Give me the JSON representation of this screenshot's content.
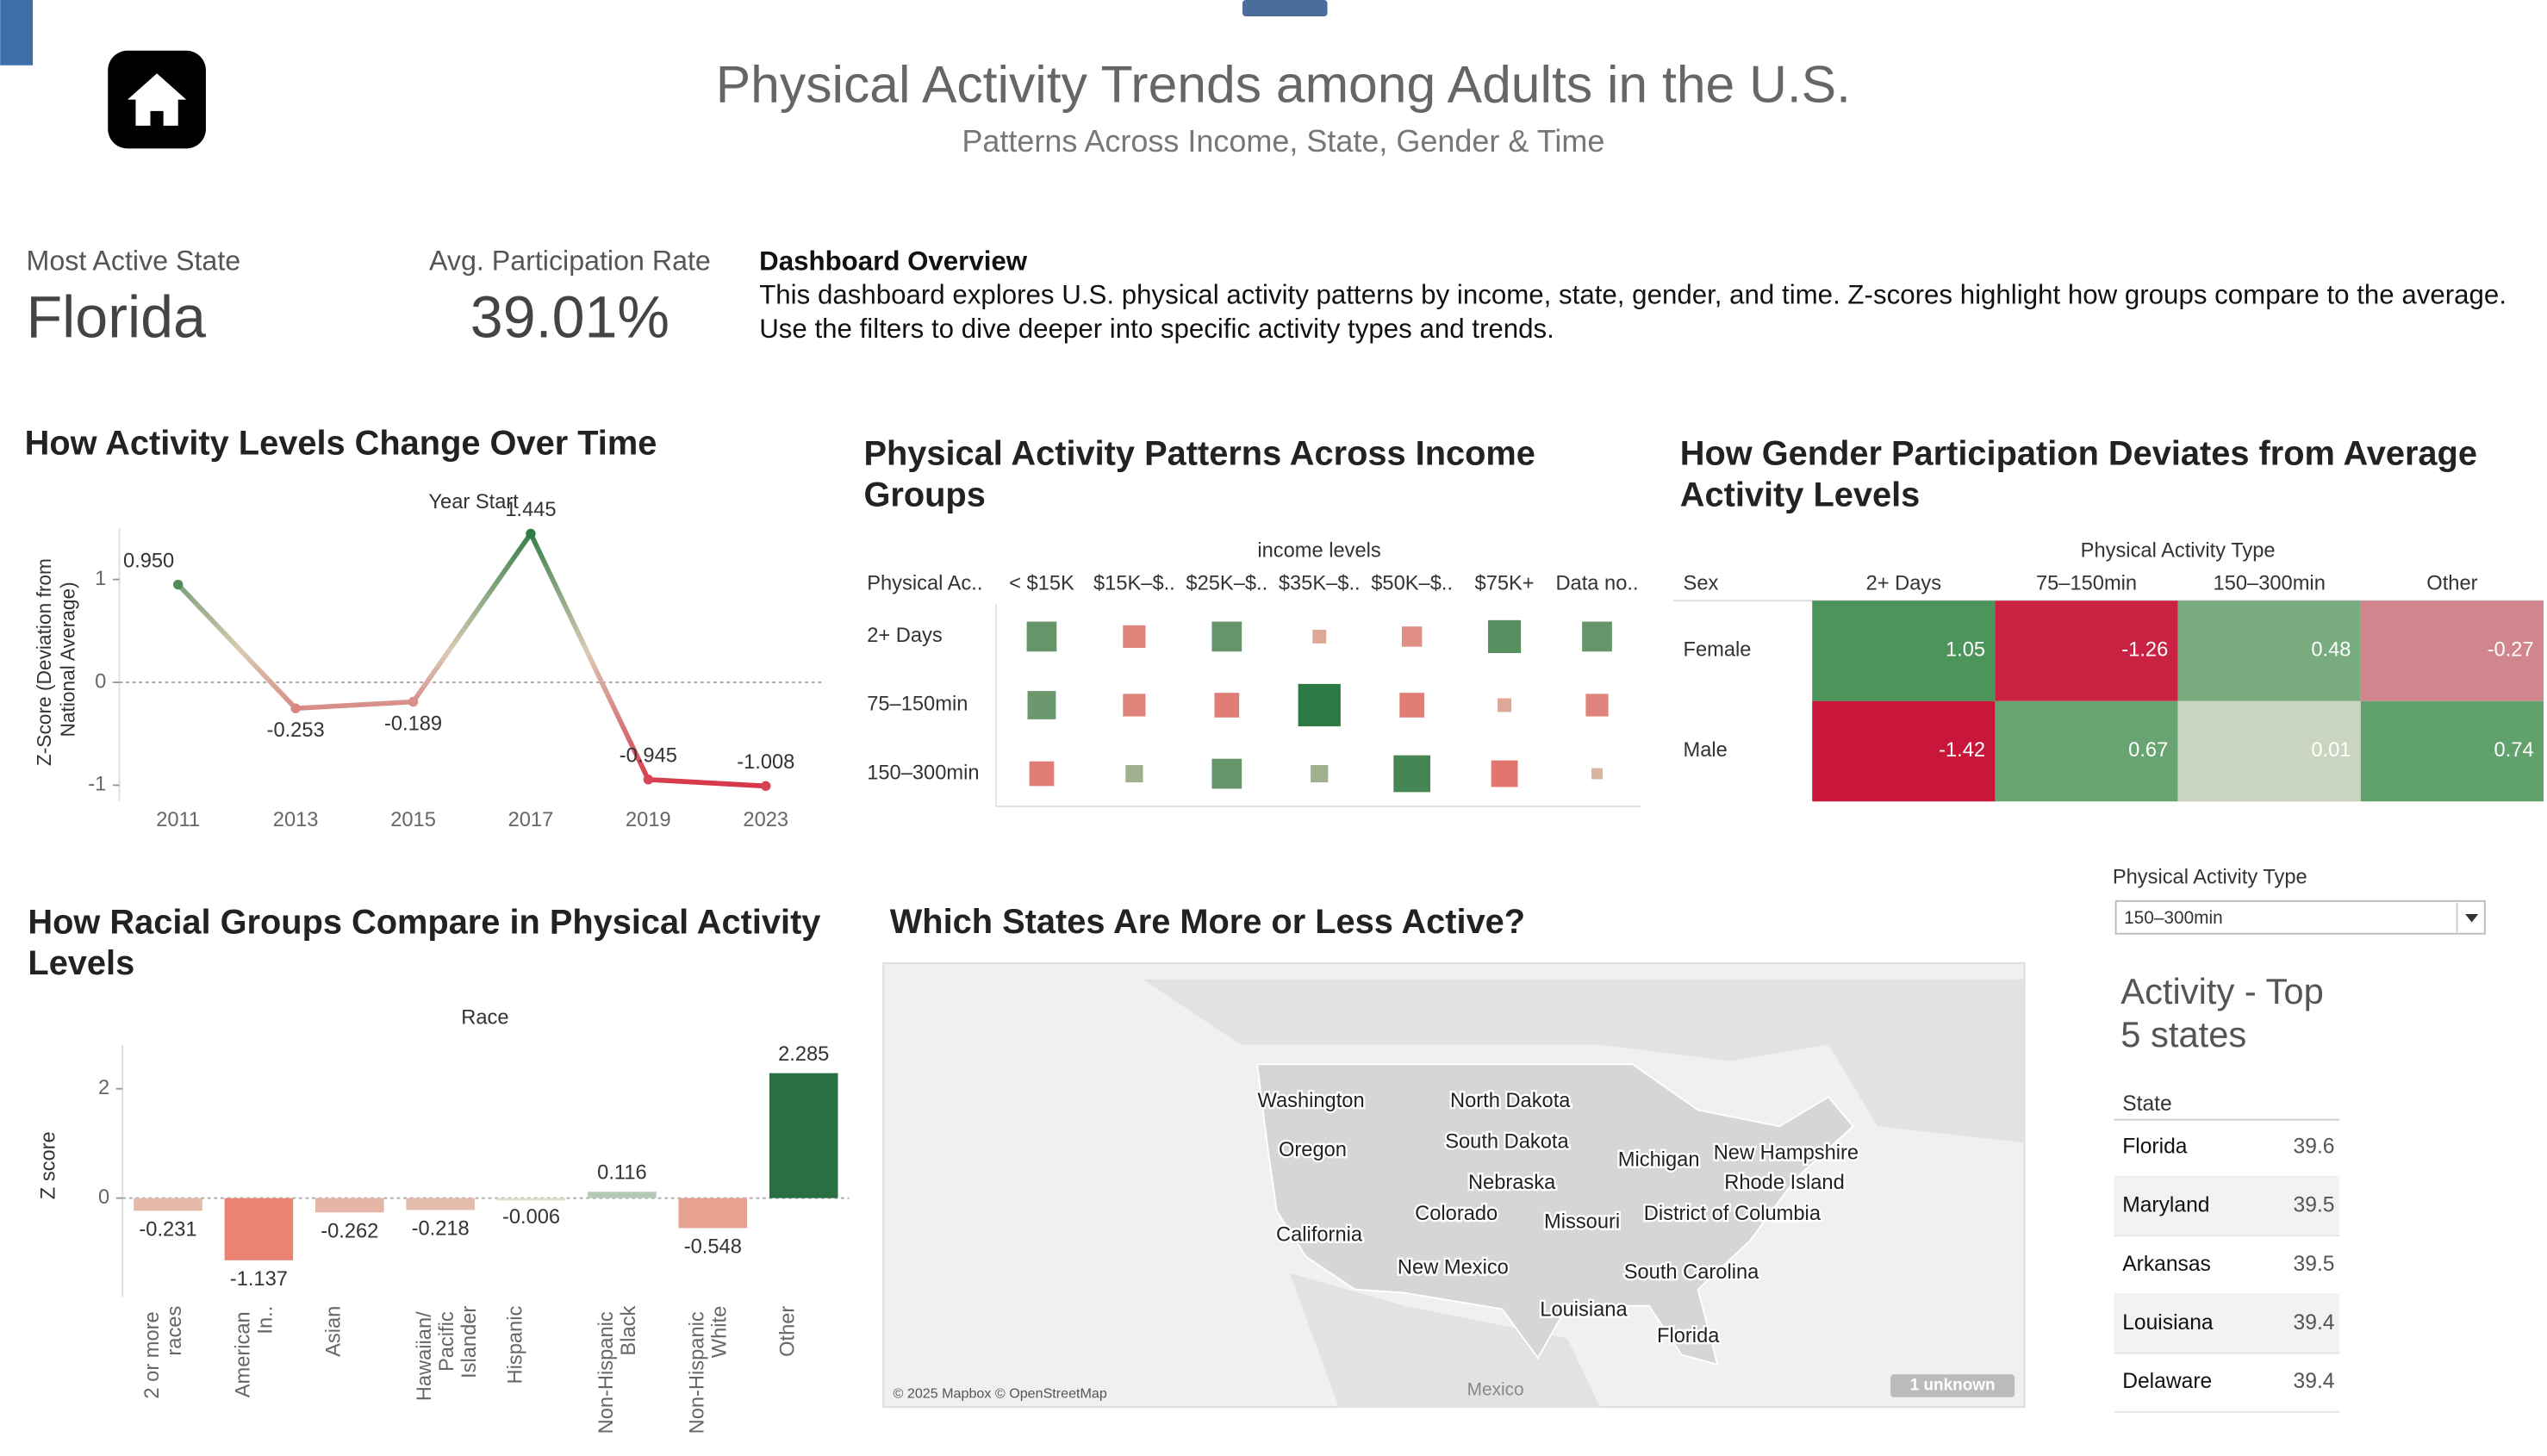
{
  "header": {
    "title": "Physical Activity Trends among Adults in the U.S.",
    "subtitle": "Patterns Across Income, State, Gender & Time"
  },
  "kpis": [
    {
      "label": "Most Active State",
      "value": "Florida"
    },
    {
      "label": "Avg. Participation Rate",
      "value": "39.01%"
    }
  ],
  "overview": {
    "title": "Dashboard Overview",
    "text": "This dashboard explores U.S. physical activity patterns by income, state, gender, and time. Z-scores highlight how groups compare to the average. Use the filters to dive deeper into specific activity types and trends."
  },
  "chart_data": [
    {
      "type": "line",
      "title": "How Activity Levels Change Over Time",
      "x_label": "Year Start",
      "y_label": "Z-Score (Deviation from National Average)",
      "categories": [
        "2011",
        "2013",
        "2015",
        "2017",
        "2019",
        "2023"
      ],
      "values": [
        0.95,
        -0.253,
        -0.189,
        1.445,
        -0.945,
        -1.008
      ],
      "value_labels": [
        "0.950",
        "-0.253",
        "-0.189",
        "1.445",
        "-0.945",
        "-1.008"
      ],
      "ylim": [
        -1.15,
        1.5
      ],
      "yticks": [
        -1,
        0,
        1
      ],
      "colors": [
        "#d7263d",
        "#d9cbb5",
        "#2f7d45"
      ]
    },
    {
      "type": "matrix",
      "title": "Physical Activity Patterns Across Income Groups",
      "column_header": "income levels",
      "row_header": "Physical Ac..",
      "columns": [
        "< $15K",
        "$15K–$..",
        "$25K–$..",
        "$35K–$..",
        "$50K–$..",
        "$75K+",
        "Data no.."
      ],
      "rows": [
        "2+ Days",
        "75–150min",
        "150–300min"
      ],
      "values": [
        [
          0.8,
          -0.4,
          0.8,
          -0.1,
          -0.3,
          1.0,
          0.8
        ],
        [
          0.7,
          -0.4,
          -0.5,
          1.8,
          -0.5,
          -0.1,
          -0.4
        ],
        [
          -0.5,
          0.2,
          0.8,
          0.2,
          1.3,
          -0.6,
          -0.05
        ]
      ],
      "colors": [
        "#e8373a",
        "#d9cbb5",
        "#2b7a43"
      ]
    },
    {
      "type": "heatmap",
      "title": "How Gender Participation Deviates from Average Activity Levels",
      "column_header": "Physical Activity Type",
      "row_header": "Sex",
      "columns": [
        "2+ Days",
        "75–150min",
        "150–300min",
        "Other"
      ],
      "rows": [
        "Female",
        "Male"
      ],
      "values": [
        [
          1.05,
          -1.26,
          0.48,
          -0.27
        ],
        [
          -1.42,
          0.67,
          0.01,
          0.74
        ]
      ],
      "colors": [
        "#c8173a",
        "#d7dccb",
        "#348a48"
      ]
    },
    {
      "type": "bar",
      "title": "How Racial Groups Compare in Physical Activity Levels",
      "x_label": "Race",
      "y_label": "Z score",
      "categories": [
        "2 or more races",
        "American In..",
        "Asian",
        "Hawaiian/ Pacific Islander",
        "Hispanic",
        "Non-Hispanic Black",
        "Non-Hispanic White",
        "Other"
      ],
      "values": [
        -0.231,
        -1.137,
        -0.262,
        -0.218,
        -0.006,
        0.116,
        -0.548,
        2.285
      ],
      "ylim": [
        -1.8,
        2.8
      ],
      "yticks": [
        0,
        2
      ],
      "colors": [
        "#f0594a",
        "#dfe6d6",
        "#2a6e44"
      ]
    },
    {
      "type": "map",
      "title": "Which States Are More or Less Active?",
      "labels": [
        "Washington",
        "Oregon",
        "California",
        "North Dakota",
        "South Dakota",
        "Nebraska",
        "Colorado",
        "New Mexico",
        "Missouri",
        "Michigan",
        "New Hampshire",
        "Rhode Island",
        "District of Columbia",
        "South Carolina",
        "Louisiana",
        "Florida"
      ],
      "country_label": "Mexico",
      "attribution": "© 2025 Mapbox © OpenStreetMap",
      "note": "1 unknown"
    }
  ],
  "filter": {
    "label": "Physical Activity Type",
    "value": "150–300min"
  },
  "top_states": {
    "title": "Activity - Top 5 states",
    "header": "State",
    "rows": [
      [
        "Florida",
        39.6
      ],
      [
        "Maryland",
        39.5
      ],
      [
        "Arkansas",
        39.5
      ],
      [
        "Louisiana",
        39.4
      ],
      [
        "Delaware",
        39.4
      ]
    ]
  }
}
